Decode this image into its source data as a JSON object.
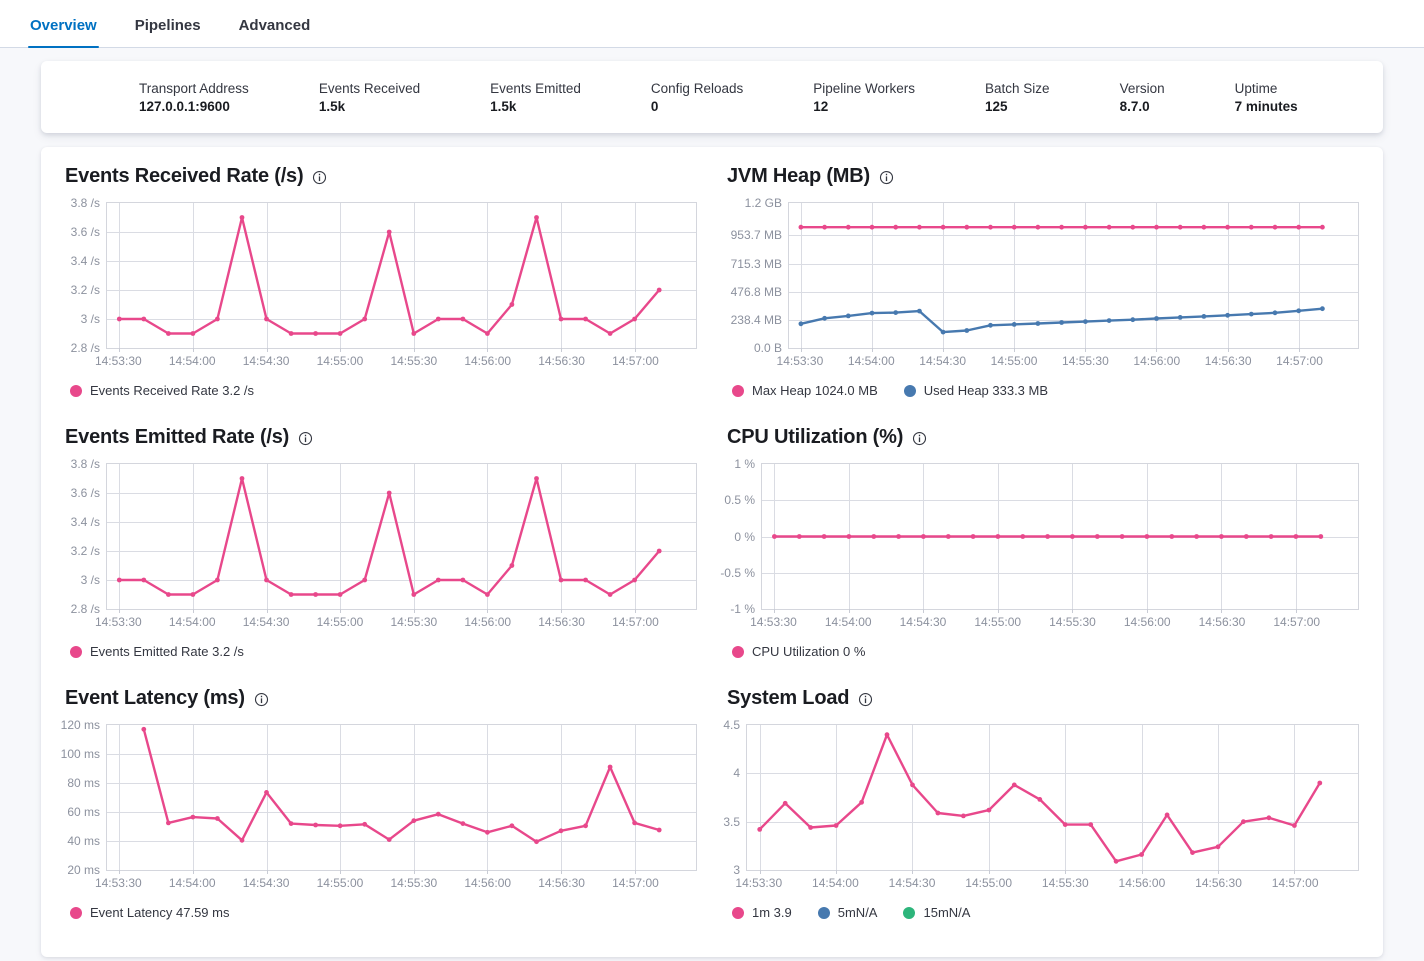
{
  "tabs": {
    "items": [
      {
        "label": "Overview",
        "active": true
      },
      {
        "label": "Pipelines",
        "active": false
      },
      {
        "label": "Advanced",
        "active": false
      }
    ]
  },
  "summary": {
    "items": [
      {
        "label": "Transport Address",
        "value": "127.0.0.1:9600"
      },
      {
        "label": "Events Received",
        "value": "1.5k"
      },
      {
        "label": "Events Emitted",
        "value": "1.5k"
      },
      {
        "label": "Config Reloads",
        "value": "0"
      },
      {
        "label": "Pipeline Workers",
        "value": "12"
      },
      {
        "label": "Batch Size",
        "value": "125"
      },
      {
        "label": "Version",
        "value": "8.7.0"
      },
      {
        "label": "Uptime",
        "value": "7 minutes"
      }
    ]
  },
  "colors": {
    "accent": "#0071C2",
    "pink": "#E8488B",
    "blue": "#4779AF",
    "green": "#2DB57B"
  },
  "chart_data": [
    {
      "type": "line",
      "title": "Events Received Rate (/s)",
      "ylim": [
        2.8,
        3.8
      ],
      "y_ticks": [
        {
          "label": "3.8 /s",
          "value": 3.8
        },
        {
          "label": "3.6 /s",
          "value": 3.6
        },
        {
          "label": "3.4 /s",
          "value": 3.4
        },
        {
          "label": "3.2 /s",
          "value": 3.2
        },
        {
          "label": "3 /s",
          "value": 3.0
        },
        {
          "label": "2.8 /s",
          "value": 2.8
        }
      ],
      "x_tick_labels": [
        "14:53:30",
        "14:54:00",
        "14:54:30",
        "14:55:00",
        "14:55:30",
        "14:56:00",
        "14:56:30",
        "14:57:00"
      ],
      "series": [
        {
          "name": "Events Received Rate",
          "legend": "Events Received Rate 3.2 /s",
          "color": "#E8488B",
          "x_start": "14:53:30",
          "interval_s": 10,
          "values": [
            3,
            3,
            2.9,
            2.9,
            3,
            3.7,
            3,
            2.9,
            2.9,
            2.9,
            3,
            3.6,
            2.9,
            3,
            3,
            2.9,
            3.1,
            3.7,
            3,
            3,
            2.9,
            3,
            3.2
          ]
        }
      ]
    },
    {
      "type": "line",
      "title": "JVM Heap (MB)",
      "ylim": [
        0,
        1228.8
      ],
      "y_ticks": [
        {
          "label": "1.2 GB",
          "value": 1228.8
        },
        {
          "label": "953.7 MB",
          "value": 953.7
        },
        {
          "label": "715.3 MB",
          "value": 715.3
        },
        {
          "label": "476.8 MB",
          "value": 476.8
        },
        {
          "label": "238.4 MB",
          "value": 238.4
        },
        {
          "label": "0.0 B",
          "value": 0
        }
      ],
      "x_tick_labels": [
        "14:53:30",
        "14:54:00",
        "14:54:30",
        "14:55:00",
        "14:55:30",
        "14:56:00",
        "14:56:30",
        "14:57:00"
      ],
      "series": [
        {
          "name": "Max Heap",
          "legend": "Max Heap 1024.0 MB",
          "color": "#E8488B",
          "x_start": "14:53:30",
          "interval_s": 10,
          "values": [
            1024,
            1024,
            1024,
            1024,
            1024,
            1024,
            1024,
            1024,
            1024,
            1024,
            1024,
            1024,
            1024,
            1024,
            1024,
            1024,
            1024,
            1024,
            1024,
            1024,
            1024,
            1024,
            1024
          ]
        },
        {
          "name": "Used Heap",
          "legend": "Used Heap 333.3 MB",
          "color": "#4779AF",
          "x_start": "14:53:30",
          "interval_s": 10,
          "values": [
            205,
            252,
            272,
            296,
            300,
            313,
            135,
            148,
            192,
            200,
            208,
            216,
            224,
            232,
            240,
            250,
            259,
            268,
            277,
            287,
            298,
            315,
            333.3
          ]
        }
      ]
    },
    {
      "type": "line",
      "title": "Events Emitted Rate (/s)",
      "ylim": [
        2.8,
        3.8
      ],
      "y_ticks": [
        {
          "label": "3.8 /s",
          "value": 3.8
        },
        {
          "label": "3.6 /s",
          "value": 3.6
        },
        {
          "label": "3.4 /s",
          "value": 3.4
        },
        {
          "label": "3.2 /s",
          "value": 3.2
        },
        {
          "label": "3 /s",
          "value": 3.0
        },
        {
          "label": "2.8 /s",
          "value": 2.8
        }
      ],
      "x_tick_labels": [
        "14:53:30",
        "14:54:00",
        "14:54:30",
        "14:55:00",
        "14:55:30",
        "14:56:00",
        "14:56:30",
        "14:57:00"
      ],
      "series": [
        {
          "name": "Events Emitted Rate",
          "legend": "Events Emitted Rate 3.2 /s",
          "color": "#E8488B",
          "x_start": "14:53:30",
          "interval_s": 10,
          "values": [
            3,
            3,
            2.9,
            2.9,
            3,
            3.7,
            3,
            2.9,
            2.9,
            2.9,
            3,
            3.6,
            2.9,
            3,
            3,
            2.9,
            3.1,
            3.7,
            3,
            3,
            2.9,
            3,
            3.2
          ]
        }
      ]
    },
    {
      "type": "line",
      "title": "CPU Utilization (%)",
      "ylim": [
        -1,
        1
      ],
      "y_ticks": [
        {
          "label": "1 %",
          "value": 1
        },
        {
          "label": "0.5 %",
          "value": 0.5
        },
        {
          "label": "0 %",
          "value": 0
        },
        {
          "label": "-0.5 %",
          "value": -0.5
        },
        {
          "label": "-1 %",
          "value": -1
        }
      ],
      "x_tick_labels": [
        "14:53:30",
        "14:54:00",
        "14:54:30",
        "14:55:00",
        "14:55:30",
        "14:56:00",
        "14:56:30",
        "14:57:00"
      ],
      "series": [
        {
          "name": "CPU Utilization",
          "legend": "CPU Utilization 0 %",
          "color": "#E8488B",
          "x_start": "14:53:30",
          "interval_s": 10,
          "values": [
            0,
            0,
            0,
            0,
            0,
            0,
            0,
            0,
            0,
            0,
            0,
            0,
            0,
            0,
            0,
            0,
            0,
            0,
            0,
            0,
            0,
            0,
            0
          ]
        }
      ]
    },
    {
      "type": "line",
      "title": "Event Latency (ms)",
      "ylim": [
        20,
        120
      ],
      "y_ticks": [
        {
          "label": "120 ms",
          "value": 120
        },
        {
          "label": "100 ms",
          "value": 100
        },
        {
          "label": "80 ms",
          "value": 80
        },
        {
          "label": "60 ms",
          "value": 60
        },
        {
          "label": "40 ms",
          "value": 40
        },
        {
          "label": "20 ms",
          "value": 20
        }
      ],
      "x_tick_labels": [
        "14:53:30",
        "14:54:00",
        "14:54:30",
        "14:55:00",
        "14:55:30",
        "14:56:00",
        "14:56:30",
        "14:57:00"
      ],
      "series": [
        {
          "name": "Event Latency",
          "legend": "Event Latency 47.59 ms",
          "color": "#E8488B",
          "x_start": "14:53:40",
          "interval_s": 10,
          "values": [
            117,
            52.5,
            56.5,
            55.5,
            40.5,
            73.5,
            52,
            51,
            50.5,
            51.5,
            41,
            54,
            58.5,
            52,
            46,
            50.5,
            39.5,
            47,
            50.5,
            91,
            52.5,
            47.59
          ]
        }
      ]
    },
    {
      "type": "line",
      "title": "System Load",
      "ylim": [
        3,
        4.5
      ],
      "y_ticks": [
        {
          "label": "4.5",
          "value": 4.5
        },
        {
          "label": "4",
          "value": 4
        },
        {
          "label": "3.5",
          "value": 3.5
        },
        {
          "label": "3",
          "value": 3
        }
      ],
      "x_tick_labels": [
        "14:53:30",
        "14:54:00",
        "14:54:30",
        "14:55:00",
        "14:55:30",
        "14:56:00",
        "14:56:30",
        "14:57:00"
      ],
      "series": [
        {
          "name": "1m",
          "legend": "1m 3.9",
          "color": "#E8488B",
          "x_start": "14:53:30",
          "interval_s": 10,
          "values": [
            3.42,
            3.69,
            3.44,
            3.46,
            3.7,
            4.4,
            3.88,
            3.59,
            3.56,
            3.62,
            3.88,
            3.73,
            3.47,
            3.47,
            3.09,
            3.16,
            3.57,
            3.18,
            3.24,
            3.5,
            3.54,
            3.46,
            3.9
          ]
        },
        {
          "name": "5m",
          "legend": "5mN/A",
          "color": "#4779AF",
          "x_start": "14:53:30",
          "interval_s": 10,
          "values": []
        },
        {
          "name": "15m",
          "legend": "15mN/A",
          "color": "#2DB57B",
          "x_start": "14:53:30",
          "interval_s": 10,
          "values": []
        }
      ]
    }
  ]
}
